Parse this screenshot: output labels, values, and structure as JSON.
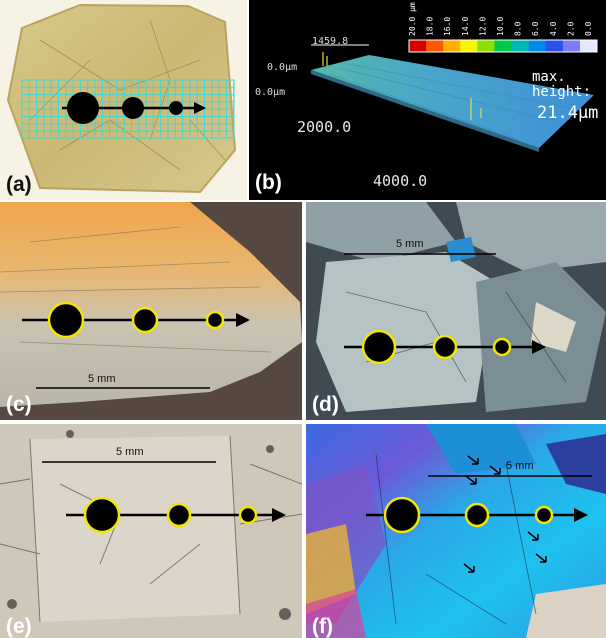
{
  "panels": {
    "a": {
      "label": "(a)"
    },
    "b": {
      "label": "(b)",
      "colorbar_ticks": [
        "20.0 µm",
        "18.0",
        "16.0",
        "14.0",
        "12.0",
        "10.0",
        "8.0",
        "6.0",
        "4.0",
        "2.0",
        "0.0"
      ],
      "colorbar_colors": [
        "#d40000",
        "#ff5a00",
        "#ffb000",
        "#f6f600",
        "#8ae000",
        "#00c84a",
        "#00b8b8",
        "#0088e8",
        "#2a50f0",
        "#7a7cf8",
        "#e6e6ff"
      ],
      "axis_top": "1459.8",
      "axis_z_top": "0.0µm",
      "axis_z_bottom": "0.0µm",
      "axis_mid": "2000.0",
      "axis_bottom": "4000.0",
      "max_label_1": "max.",
      "max_label_2": "height:",
      "max_value": "21.4µm"
    },
    "c": {
      "label": "(c)",
      "scale": "5 mm"
    },
    "d": {
      "label": "(d)",
      "scale": "5 mm"
    },
    "e": {
      "label": "(e)",
      "scale": "5 mm"
    },
    "f": {
      "label": "(f)",
      "scale": "5 mm"
    }
  },
  "colors": {
    "spot_fill": "#000000",
    "spot_ring": "#f2e600",
    "grid": "#45d6d0",
    "arrow": "#000000"
  }
}
